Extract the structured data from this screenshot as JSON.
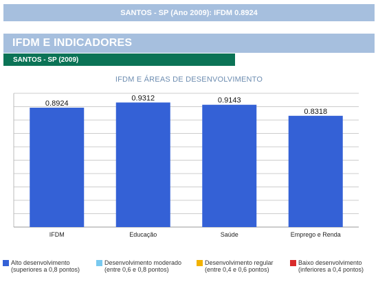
{
  "header": {
    "banner": "SANTOS - SP (Ano 2009): IFDM 0.8924"
  },
  "section": {
    "title": "IFDM E INDICADORES",
    "subtitle": "SANTOS - SP (2009)"
  },
  "chart_data": {
    "type": "bar",
    "title": "IFDM E ÁREAS DE DESENVOLVIMENTO",
    "categories": [
      "IFDM",
      "Educação",
      "Saúde",
      "Emprego e Renda"
    ],
    "values": [
      0.8924,
      0.9312,
      0.9143,
      0.8318
    ],
    "value_labels": [
      "0.8924",
      "0.9312",
      "0.9143",
      "0.8318"
    ],
    "xlabel": "",
    "ylabel": "",
    "ylim": [
      0,
      1
    ],
    "grid": true,
    "bar_color": "#3461d6",
    "legend_placement": "bottom"
  },
  "legend": [
    {
      "line1": "Alto desenvolvimento",
      "line2": "(superiores a 0,8 pontos)",
      "color": "#3461d6"
    },
    {
      "line1": "Desenvolvimento moderado",
      "line2": "(entre 0,6 e 0,8 pontos)",
      "color": "#79c9ef"
    },
    {
      "line1": "Desenvolvimento regular",
      "line2": "(entre 0,4 e 0,6 pontos)",
      "color": "#f2b200"
    },
    {
      "line1": "Baixo desenvolvimento",
      "line2": "(inferiores a 0,4 pontos)",
      "color": "#d92b2b"
    }
  ]
}
